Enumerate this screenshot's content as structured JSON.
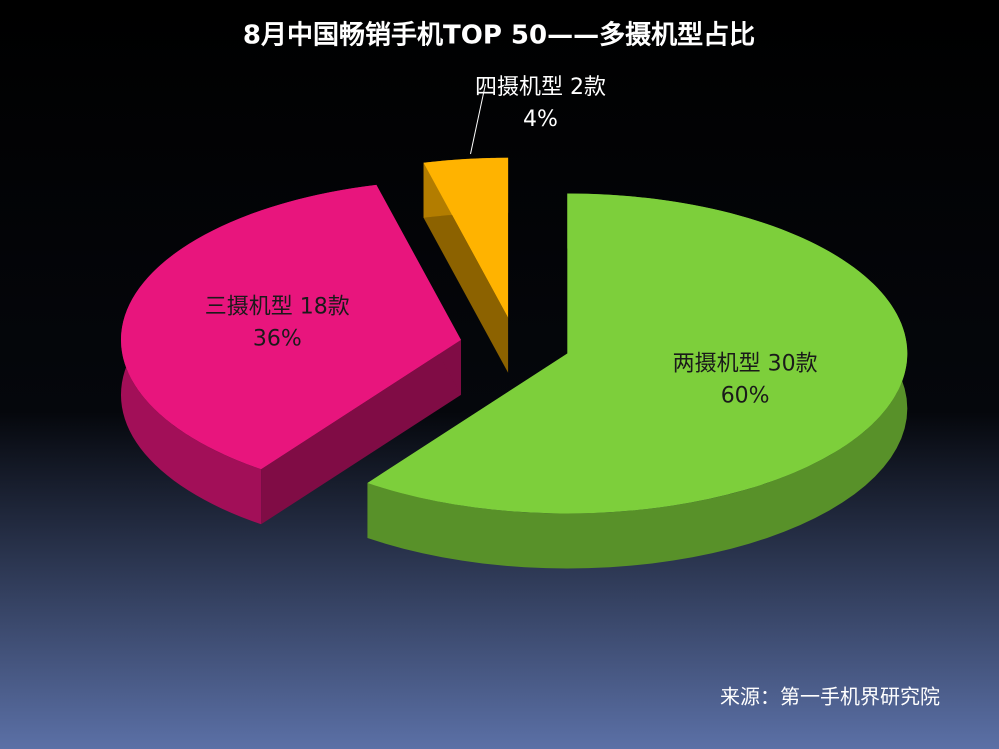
{
  "chart_data": {
    "type": "pie",
    "title": "8月中国畅销手机TOP 50——多摄机型占比",
    "categories": [
      "两摄机型 30款",
      "三摄机型 18款",
      "四摄机型 2款"
    ],
    "values": [
      60,
      36,
      4
    ],
    "value_labels": [
      "60%",
      "36%",
      "4%"
    ],
    "colors": [
      "#7dcf3b",
      "#e8157d",
      "#ffb300"
    ],
    "source": "来源：第一手机界研究院"
  }
}
